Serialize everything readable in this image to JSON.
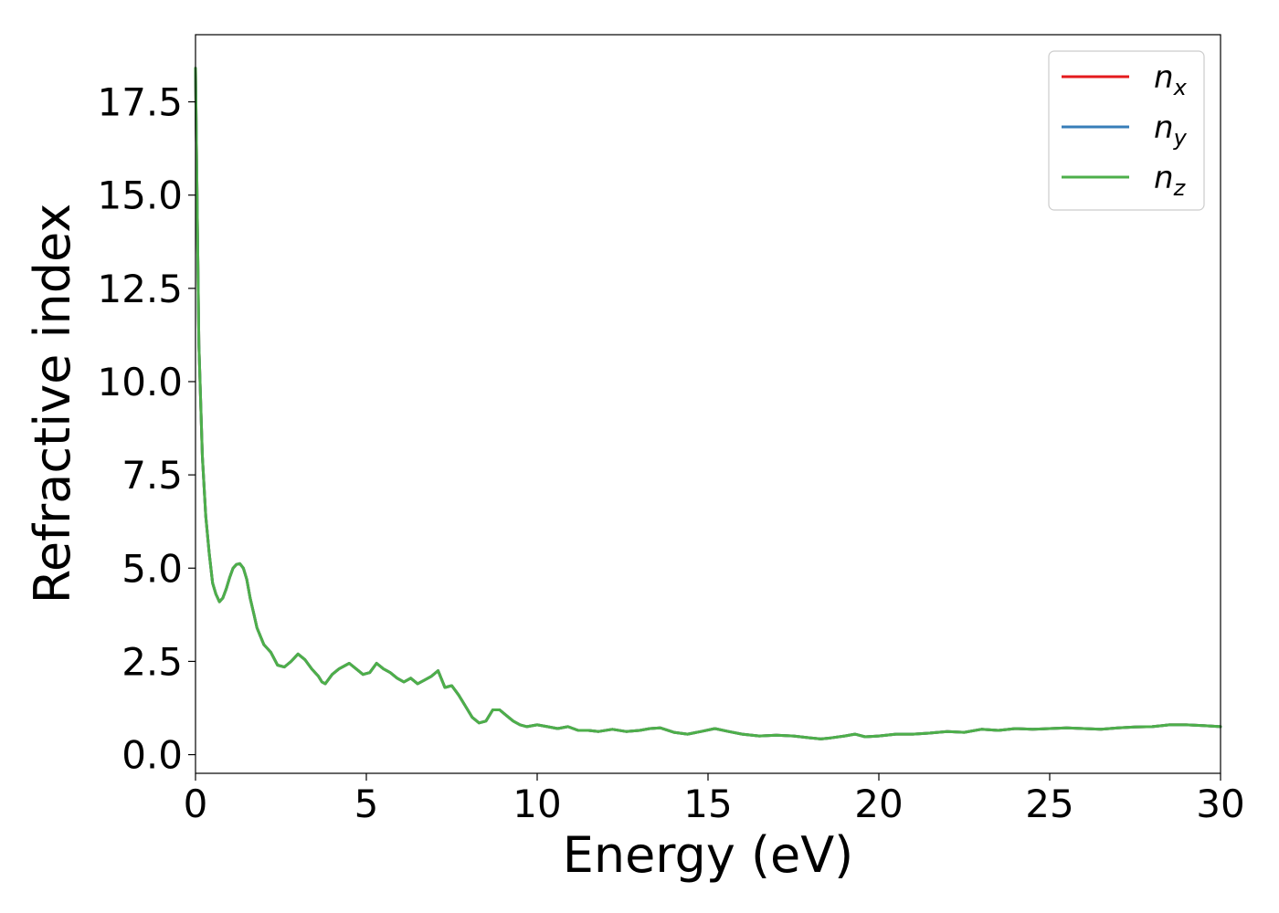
{
  "chart_data": {
    "type": "line",
    "title": "",
    "xlabel": "Energy (eV)",
    "ylabel": "Refractive index",
    "xlim": [
      0,
      30
    ],
    "ylim": [
      -0.5,
      19.3
    ],
    "xticks": [
      0,
      5,
      10,
      15,
      20,
      25,
      30
    ],
    "xtick_labels": [
      "0",
      "5",
      "10",
      "15",
      "20",
      "25",
      "30"
    ],
    "yticks": [
      0.0,
      2.5,
      5.0,
      7.5,
      10.0,
      12.5,
      15.0,
      17.5
    ],
    "ytick_labels": [
      "0.0",
      "2.5",
      "5.0",
      "7.5",
      "10.0",
      "12.5",
      "15.0",
      "17.5"
    ],
    "grid": false,
    "legend_position": "top-right",
    "x": [
      0.0,
      0.1,
      0.2,
      0.3,
      0.4,
      0.5,
      0.6,
      0.7,
      0.8,
      0.9,
      1.0,
      1.1,
      1.2,
      1.3,
      1.4,
      1.5,
      1.6,
      1.7,
      1.8,
      2.0,
      2.2,
      2.4,
      2.6,
      2.8,
      3.0,
      3.2,
      3.4,
      3.6,
      3.7,
      3.8,
      4.0,
      4.2,
      4.4,
      4.5,
      4.7,
      4.9,
      5.1,
      5.3,
      5.5,
      5.7,
      5.9,
      6.1,
      6.3,
      6.5,
      6.7,
      6.9,
      7.1,
      7.3,
      7.5,
      7.7,
      7.9,
      8.1,
      8.3,
      8.5,
      8.7,
      8.9,
      9.1,
      9.3,
      9.5,
      9.7,
      10.0,
      10.3,
      10.6,
      10.9,
      11.2,
      11.5,
      11.8,
      12.2,
      12.6,
      13.0,
      13.3,
      13.6,
      14.0,
      14.4,
      14.8,
      15.2,
      15.6,
      16.0,
      16.5,
      17.0,
      17.5,
      18.0,
      18.3,
      18.6,
      19.0,
      19.3,
      19.6,
      20.0,
      20.5,
      21.0,
      21.5,
      22.0,
      22.5,
      23.0,
      23.5,
      24.0,
      24.5,
      25.0,
      25.5,
      26.0,
      26.5,
      27.0,
      27.5,
      28.0,
      28.5,
      29.0,
      29.5,
      30.0
    ],
    "series": [
      {
        "name": "n_x",
        "color": "#e41a1c",
        "values": [
          18.4,
          11.0,
          8.0,
          6.4,
          5.4,
          4.6,
          4.3,
          4.1,
          4.2,
          4.45,
          4.75,
          5.0,
          5.1,
          5.12,
          5.0,
          4.7,
          4.2,
          3.8,
          3.4,
          2.95,
          2.75,
          2.4,
          2.35,
          2.5,
          2.7,
          2.55,
          2.3,
          2.1,
          1.95,
          1.9,
          2.15,
          2.3,
          2.4,
          2.45,
          2.3,
          2.15,
          2.2,
          2.45,
          2.3,
          2.2,
          2.05,
          1.95,
          2.05,
          1.9,
          2.0,
          2.1,
          2.25,
          1.8,
          1.85,
          1.6,
          1.3,
          1.0,
          0.85,
          0.9,
          1.2,
          1.2,
          1.05,
          0.9,
          0.8,
          0.75,
          0.8,
          0.75,
          0.7,
          0.75,
          0.65,
          0.65,
          0.62,
          0.68,
          0.62,
          0.65,
          0.7,
          0.72,
          0.6,
          0.55,
          0.62,
          0.7,
          0.62,
          0.55,
          0.5,
          0.52,
          0.5,
          0.45,
          0.42,
          0.45,
          0.5,
          0.55,
          0.48,
          0.5,
          0.55,
          0.55,
          0.58,
          0.62,
          0.6,
          0.68,
          0.65,
          0.7,
          0.68,
          0.7,
          0.72,
          0.7,
          0.68,
          0.72,
          0.74,
          0.75,
          0.8,
          0.8,
          0.78,
          0.75
        ]
      },
      {
        "name": "n_y",
        "color": "#377eb8",
        "values": [
          18.4,
          11.0,
          8.0,
          6.4,
          5.4,
          4.6,
          4.3,
          4.1,
          4.2,
          4.45,
          4.75,
          5.0,
          5.1,
          5.12,
          5.0,
          4.7,
          4.2,
          3.8,
          3.4,
          2.95,
          2.75,
          2.4,
          2.35,
          2.5,
          2.7,
          2.55,
          2.3,
          2.1,
          1.95,
          1.9,
          2.15,
          2.3,
          2.4,
          2.45,
          2.3,
          2.15,
          2.2,
          2.45,
          2.3,
          2.2,
          2.05,
          1.95,
          2.05,
          1.9,
          2.0,
          2.1,
          2.25,
          1.8,
          1.85,
          1.6,
          1.3,
          1.0,
          0.85,
          0.9,
          1.2,
          1.2,
          1.05,
          0.9,
          0.8,
          0.75,
          0.8,
          0.75,
          0.7,
          0.75,
          0.65,
          0.65,
          0.62,
          0.68,
          0.62,
          0.65,
          0.7,
          0.72,
          0.6,
          0.55,
          0.62,
          0.7,
          0.62,
          0.55,
          0.5,
          0.52,
          0.5,
          0.45,
          0.42,
          0.45,
          0.5,
          0.55,
          0.48,
          0.5,
          0.55,
          0.55,
          0.58,
          0.62,
          0.6,
          0.68,
          0.65,
          0.7,
          0.68,
          0.7,
          0.72,
          0.7,
          0.68,
          0.72,
          0.74,
          0.75,
          0.8,
          0.8,
          0.78,
          0.75
        ]
      },
      {
        "name": "n_z",
        "color": "#4daf4a",
        "values": [
          18.4,
          11.0,
          8.0,
          6.4,
          5.4,
          4.6,
          4.3,
          4.1,
          4.2,
          4.45,
          4.75,
          5.0,
          5.1,
          5.12,
          5.0,
          4.7,
          4.2,
          3.8,
          3.4,
          2.95,
          2.75,
          2.4,
          2.35,
          2.5,
          2.7,
          2.55,
          2.3,
          2.1,
          1.95,
          1.9,
          2.15,
          2.3,
          2.4,
          2.45,
          2.3,
          2.15,
          2.2,
          2.45,
          2.3,
          2.2,
          2.05,
          1.95,
          2.05,
          1.9,
          2.0,
          2.1,
          2.25,
          1.8,
          1.85,
          1.6,
          1.3,
          1.0,
          0.85,
          0.9,
          1.2,
          1.2,
          1.05,
          0.9,
          0.8,
          0.75,
          0.8,
          0.75,
          0.7,
          0.75,
          0.65,
          0.65,
          0.62,
          0.68,
          0.62,
          0.65,
          0.7,
          0.72,
          0.6,
          0.55,
          0.62,
          0.7,
          0.62,
          0.55,
          0.5,
          0.52,
          0.5,
          0.45,
          0.42,
          0.45,
          0.5,
          0.55,
          0.48,
          0.5,
          0.55,
          0.55,
          0.58,
          0.62,
          0.6,
          0.68,
          0.65,
          0.7,
          0.68,
          0.7,
          0.72,
          0.7,
          0.68,
          0.72,
          0.74,
          0.75,
          0.8,
          0.8,
          0.78,
          0.75
        ]
      }
    ],
    "legend": [
      {
        "base": "n",
        "sub": "x",
        "color": "#e41a1c"
      },
      {
        "base": "n",
        "sub": "y",
        "color": "#377eb8"
      },
      {
        "base": "n",
        "sub": "z",
        "color": "#4daf4a"
      }
    ]
  }
}
